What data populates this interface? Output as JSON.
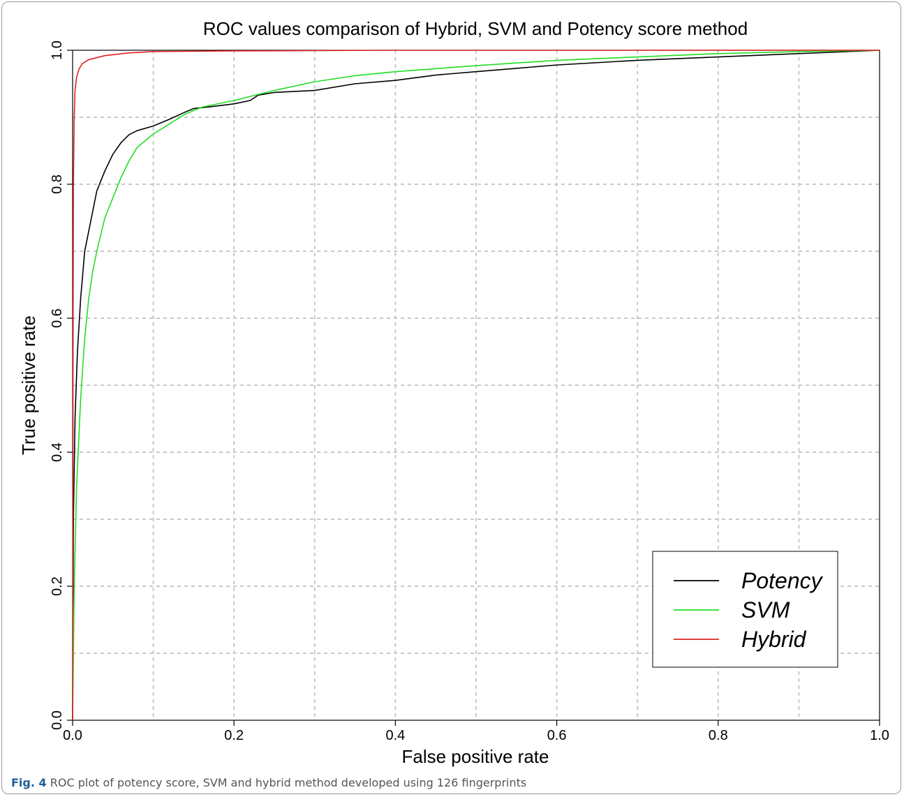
{
  "chart_data": {
    "type": "line",
    "title": "ROC values comparison of Hybrid, SVM and Potency score method",
    "xlabel": "False positive rate",
    "ylabel": "True positive rate",
    "xlim": [
      0,
      1
    ],
    "ylim": [
      0,
      1
    ],
    "xticks": [
      "0.0",
      "0.2",
      "0.4",
      "0.6",
      "0.8",
      "1.0"
    ],
    "yticks": [
      "0.0",
      "0.2",
      "0.4",
      "0.6",
      "0.8",
      "1.0"
    ],
    "grid": true,
    "legend_position": "bottom-right",
    "series": [
      {
        "name": "Potency",
        "color": "#000000",
        "points": [
          [
            0,
            0
          ],
          [
            0.001,
            0.3
          ],
          [
            0.003,
            0.45
          ],
          [
            0.006,
            0.55
          ],
          [
            0.01,
            0.63
          ],
          [
            0.015,
            0.7
          ],
          [
            0.02,
            0.73
          ],
          [
            0.025,
            0.76
          ],
          [
            0.03,
            0.79
          ],
          [
            0.04,
            0.82
          ],
          [
            0.05,
            0.845
          ],
          [
            0.06,
            0.862
          ],
          [
            0.07,
            0.874
          ],
          [
            0.08,
            0.88
          ],
          [
            0.1,
            0.887
          ],
          [
            0.12,
            0.897
          ],
          [
            0.14,
            0.908
          ],
          [
            0.15,
            0.913
          ],
          [
            0.18,
            0.917
          ],
          [
            0.2,
            0.92
          ],
          [
            0.22,
            0.925
          ],
          [
            0.23,
            0.933
          ],
          [
            0.25,
            0.937
          ],
          [
            0.3,
            0.94
          ],
          [
            0.35,
            0.95
          ],
          [
            0.4,
            0.955
          ],
          [
            0.45,
            0.963
          ],
          [
            0.5,
            0.968
          ],
          [
            0.55,
            0.973
          ],
          [
            0.6,
            0.978
          ],
          [
            0.7,
            0.985
          ],
          [
            0.8,
            0.99
          ],
          [
            0.9,
            0.995
          ],
          [
            1,
            1
          ]
        ]
      },
      {
        "name": "SVM",
        "color": "#22dd22",
        "points": [
          [
            0,
            0
          ],
          [
            0.002,
            0.2
          ],
          [
            0.005,
            0.35
          ],
          [
            0.01,
            0.48
          ],
          [
            0.015,
            0.57
          ],
          [
            0.02,
            0.63
          ],
          [
            0.025,
            0.67
          ],
          [
            0.03,
            0.7
          ],
          [
            0.04,
            0.75
          ],
          [
            0.05,
            0.78
          ],
          [
            0.06,
            0.81
          ],
          [
            0.07,
            0.835
          ],
          [
            0.08,
            0.855
          ],
          [
            0.1,
            0.875
          ],
          [
            0.12,
            0.89
          ],
          [
            0.14,
            0.905
          ],
          [
            0.16,
            0.915
          ],
          [
            0.2,
            0.925
          ],
          [
            0.25,
            0.94
          ],
          [
            0.3,
            0.953
          ],
          [
            0.35,
            0.962
          ],
          [
            0.4,
            0.968
          ],
          [
            0.5,
            0.977
          ],
          [
            0.6,
            0.985
          ],
          [
            0.7,
            0.99
          ],
          [
            0.8,
            0.995
          ],
          [
            0.9,
            0.998
          ],
          [
            1,
            1
          ]
        ]
      },
      {
        "name": "Hybrid",
        "color": "#dd2222",
        "points": [
          [
            0,
            0
          ],
          [
            0.0005,
            0.5
          ],
          [
            0.001,
            0.8
          ],
          [
            0.002,
            0.9
          ],
          [
            0.003,
            0.94
          ],
          [
            0.005,
            0.96
          ],
          [
            0.008,
            0.972
          ],
          [
            0.012,
            0.98
          ],
          [
            0.02,
            0.986
          ],
          [
            0.04,
            0.992
          ],
          [
            0.07,
            0.996
          ],
          [
            0.1,
            0.998
          ],
          [
            0.2,
            0.999
          ],
          [
            0.4,
            1
          ],
          [
            1,
            1
          ]
        ]
      }
    ]
  },
  "caption": {
    "label": "Fig. 4",
    "text": " ROC plot of potency score, SVM and hybrid method developed using 126 fingerprints"
  }
}
